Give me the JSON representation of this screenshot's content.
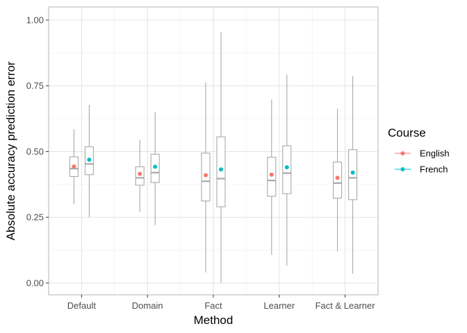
{
  "chart_data": {
    "type": "boxplot",
    "xlabel": "Method",
    "ylabel": "Absolute accuracy prediction error",
    "ylim": [
      -0.045,
      1.05
    ],
    "yticks": [
      0,
      0.25,
      0.5,
      0.75,
      1.0
    ],
    "ytick_labels": [
      "0.00",
      "0.25",
      "0.50",
      "0.75",
      "1.00"
    ],
    "categories": [
      "Default",
      "Domain",
      "Fact",
      "Learner",
      "Fact & Learner"
    ],
    "grid": true,
    "legend": {
      "title": "Course",
      "placement": "right"
    },
    "series": [
      {
        "name": "English",
        "color": "#F8766D",
        "boxes": [
          {
            "min": 0.3,
            "q1": 0.405,
            "median": 0.435,
            "q3": 0.48,
            "max": 0.585,
            "mean": 0.443
          },
          {
            "min": 0.27,
            "q1": 0.372,
            "median": 0.4,
            "q3": 0.442,
            "max": 0.545,
            "mean": 0.415
          },
          {
            "min": 0.04,
            "q1": 0.312,
            "median": 0.387,
            "q3": 0.494,
            "max": 0.763,
            "mean": 0.41
          },
          {
            "min": 0.107,
            "q1": 0.33,
            "median": 0.39,
            "q3": 0.478,
            "max": 0.698,
            "mean": 0.412
          },
          {
            "min": 0.12,
            "q1": 0.323,
            "median": 0.38,
            "q3": 0.46,
            "max": 0.663,
            "mean": 0.4
          }
        ]
      },
      {
        "name": "French",
        "color": "#00BFC4",
        "boxes": [
          {
            "min": 0.25,
            "q1": 0.412,
            "median": 0.453,
            "q3": 0.518,
            "max": 0.678,
            "mean": 0.469
          },
          {
            "min": 0.22,
            "q1": 0.382,
            "median": 0.42,
            "q3": 0.49,
            "max": 0.65,
            "mean": 0.442
          },
          {
            "min": 0.0,
            "q1": 0.29,
            "median": 0.397,
            "q3": 0.556,
            "max": 0.955,
            "mean": 0.432
          },
          {
            "min": 0.066,
            "q1": 0.34,
            "median": 0.418,
            "q3": 0.522,
            "max": 0.793,
            "mean": 0.44
          },
          {
            "min": 0.035,
            "q1": 0.317,
            "median": 0.4,
            "q3": 0.507,
            "max": 0.787,
            "mean": 0.42
          }
        ]
      }
    ]
  }
}
